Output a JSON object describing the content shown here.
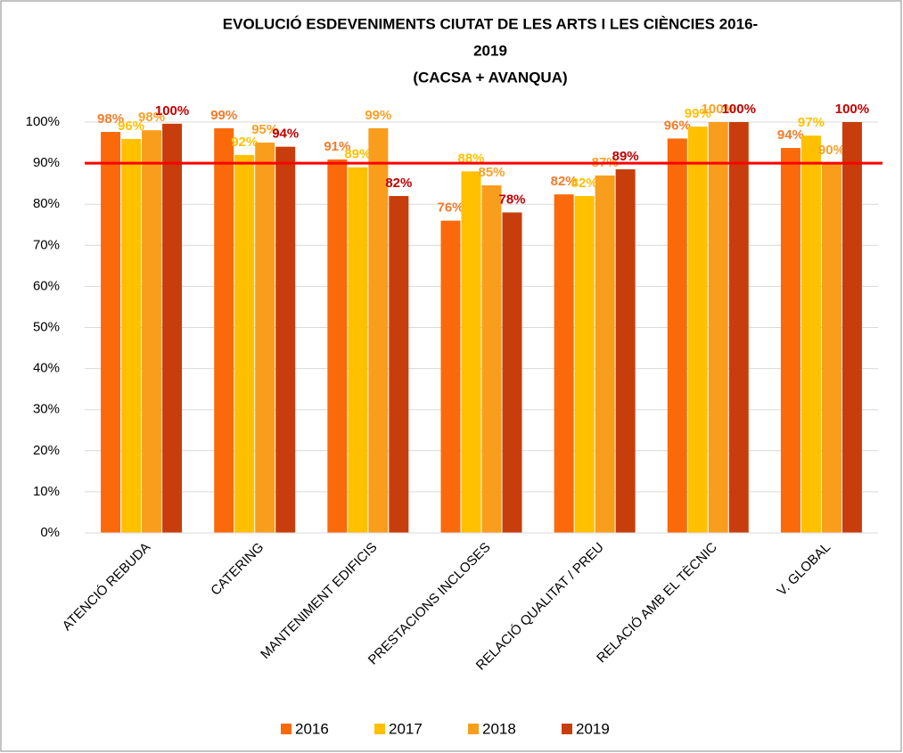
{
  "chart_data": {
    "type": "bar",
    "title": [
      "EVOLUCIÓ ESDEVENIMENTS CIUTAT DE LES ARTS I LES CIÈNCIES 2016-",
      "2019",
      "(CACSA + AVANQUA)"
    ],
    "categories": [
      "ATENCIÓ REBUDA",
      "CATERING",
      "MANTENIMENT EDIFICIS",
      "PRESTACIONS INCLOSES",
      "RELACIÓ QUALITAT / PREU",
      "RELACIÓ AMB EL TÈCNIC",
      "V. GLOBAL"
    ],
    "series": [
      {
        "name": "2016",
        "color": "#fa6a0a",
        "label_color": "#f47b2a",
        "values": [
          97.6,
          98.5,
          90.9,
          76,
          82.4,
          96,
          93.7
        ],
        "value_labels": [
          "98%",
          "99%",
          "91%",
          "76%",
          "82%",
          "96%",
          "94%"
        ]
      },
      {
        "name": "2017",
        "color": "#ffc000",
        "label_color": "#ffc000",
        "values": [
          95.9,
          92,
          89,
          88,
          82,
          98.9,
          96.7
        ],
        "value_labels": [
          "96%",
          "92%",
          "89%",
          "88%",
          "82%",
          "99%",
          "97%"
        ]
      },
      {
        "name": "2018",
        "color": "#f99d1c",
        "label_color": "#f7a027",
        "values": [
          98,
          95,
          98.5,
          84.6,
          87,
          100,
          90
        ],
        "value_labels": [
          "98%",
          "95%",
          "99%",
          "85%",
          "87%",
          "100%",
          "90%"
        ]
      },
      {
        "name": "2019",
        "color": "#c83d0c",
        "label_color": "#c00000",
        "values": [
          99.6,
          94,
          82,
          78,
          88.5,
          100,
          100
        ],
        "value_labels": [
          "100%",
          "94%",
          "82%",
          "78%",
          "89%",
          "100%",
          "100%"
        ]
      }
    ],
    "ylim": [
      0,
      100
    ],
    "yticks": [
      {
        "value": 0,
        "label": "0%"
      },
      {
        "value": 10,
        "label": "10%"
      },
      {
        "value": 20,
        "label": "20%"
      },
      {
        "value": 30,
        "label": "30%"
      },
      {
        "value": 40,
        "label": "40%"
      },
      {
        "value": 50,
        "label": "50%"
      },
      {
        "value": 60,
        "label": "60%"
      },
      {
        "value": 70,
        "label": "70%"
      },
      {
        "value": 80,
        "label": "80%"
      },
      {
        "value": 90,
        "label": "90%"
      },
      {
        "value": 100,
        "label": "100%"
      }
    ],
    "grid": true,
    "reference_line": {
      "value": 90,
      "color": "#ff0000"
    },
    "legend": "bottom"
  }
}
